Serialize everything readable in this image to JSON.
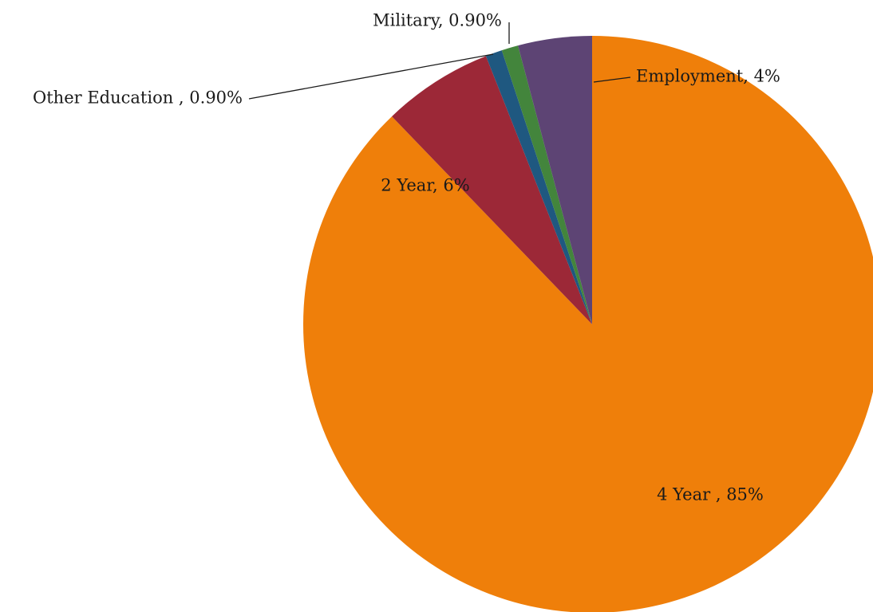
{
  "chart_data": {
    "type": "pie",
    "title": "",
    "start_angle_deg": 0,
    "direction": "clockwise",
    "slices": [
      {
        "name": "4 Year ",
        "value": 85,
        "label": "4 Year , 85%",
        "color": "#ef7f0a"
      },
      {
        "name": "2 Year",
        "value": 6,
        "label": "2 Year, 6%",
        "color": "#9c2837"
      },
      {
        "name": "Other Education ",
        "value": 0.9,
        "label": "Other Education , 0.90%",
        "color": "#1f5880"
      },
      {
        "name": "Military",
        "value": 0.9,
        "label": "Military, 0.90%",
        "color": "#43853c"
      },
      {
        "name": "Employment",
        "value": 4,
        "label": "Employment, 4%",
        "color": "#5d4474"
      }
    ]
  }
}
